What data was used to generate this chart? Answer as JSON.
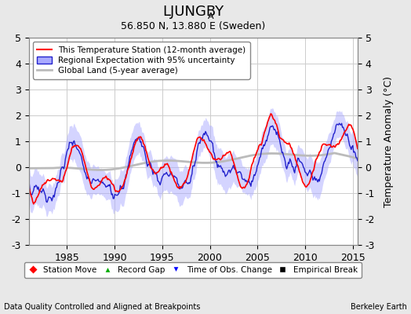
{
  "title": "LJUNGBY",
  "title_sub": "A",
  "subtitle": "56.850 N, 13.880 E (Sweden)",
  "xlabel_ticks": [
    1985,
    1990,
    1995,
    2000,
    2005,
    2010,
    2015
  ],
  "ylim": [
    -3,
    5
  ],
  "yticks": [
    -3,
    -2,
    -1,
    0,
    1,
    2,
    3,
    4,
    5
  ],
  "xlim": [
    1981,
    2015.5
  ],
  "ylabel": "Temperature Anomaly (°C)",
  "legend_items": [
    {
      "label": "This Temperature Station (12-month average)",
      "color": "#FF0000",
      "lw": 1.5
    },
    {
      "label": "Regional Expectation with 95% uncertainty",
      "color": "#4444FF",
      "lw": 1.5
    },
    {
      "label": "Global Land (5-year average)",
      "color": "#AAAAAA",
      "lw": 2.0
    }
  ],
  "legend2_items": [
    {
      "label": "Station Move",
      "marker": "D",
      "color": "#FF0000"
    },
    {
      "label": "Record Gap",
      "marker": "^",
      "color": "#00AA00"
    },
    {
      "label": "Time of Obs. Change",
      "marker": "v",
      "color": "#0000FF"
    },
    {
      "label": "Empirical Break",
      "marker": "s",
      "color": "#000000"
    }
  ],
  "footer_left": "Data Quality Controlled and Aligned at Breakpoints",
  "footer_right": "Berkeley Earth",
  "background_color": "#E8E8E8",
  "plot_bg_color": "#FFFFFF",
  "grid_color": "#CCCCCC"
}
